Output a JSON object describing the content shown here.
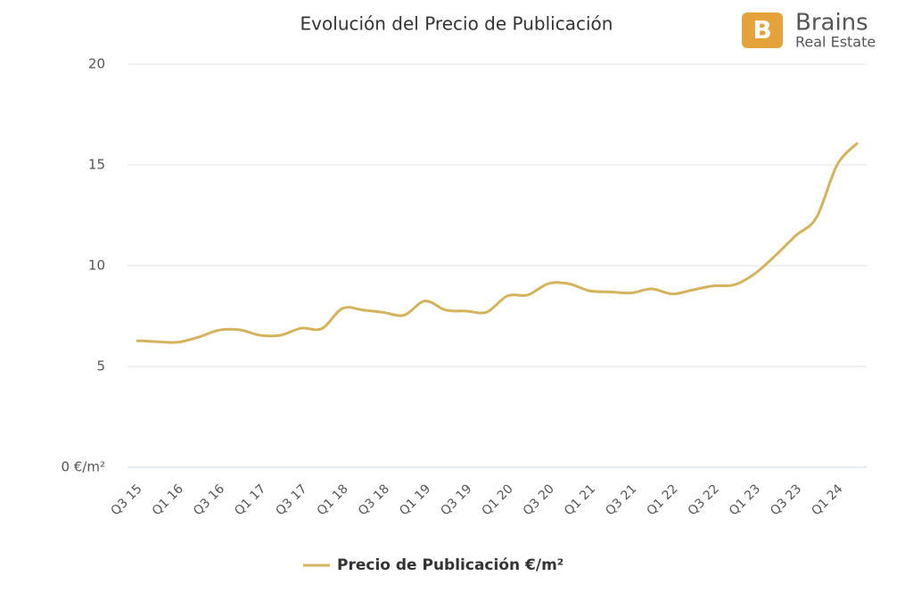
{
  "chart_data": {
    "type": "line",
    "title": "Evolución del Precio de Publicación",
    "brand": {
      "name": "Brains",
      "tagline": "Real Estate"
    },
    "categories": [
      "Q3 15",
      null,
      "Q1 16",
      null,
      "Q3 16",
      null,
      "Q1 17",
      null,
      "Q3 17",
      null,
      "Q1 18",
      null,
      "Q3 18",
      null,
      "Q1 19",
      null,
      "Q3 19",
      null,
      "Q1 20",
      null,
      "Q3 20",
      null,
      "Q1 21",
      null,
      "Q3 21",
      null,
      "Q1 22",
      null,
      "Q3 22",
      null,
      "Q1 23",
      null,
      "Q3 23",
      null,
      "Q1 24",
      null
    ],
    "series": [
      {
        "name": "Precio de Publicación €/m²",
        "color": "#d4b35c",
        "values": [
          6.28,
          6.23,
          6.2,
          6.45,
          6.8,
          6.82,
          6.55,
          6.55,
          6.9,
          6.88,
          7.88,
          7.8,
          7.68,
          7.55,
          8.25,
          7.8,
          7.75,
          7.7,
          8.5,
          8.55,
          9.12,
          9.1,
          8.75,
          8.7,
          8.65,
          8.85,
          8.6,
          8.8,
          9.0,
          9.05,
          9.6,
          10.5,
          11.5,
          12.4,
          15.0,
          16.1
        ]
      }
    ],
    "ylim": [
      0,
      20
    ],
    "yticks": [
      {
        "value": 0,
        "label": "0 €/m²"
      },
      5,
      10,
      15,
      20
    ],
    "grid": true,
    "legend": "bottom"
  }
}
